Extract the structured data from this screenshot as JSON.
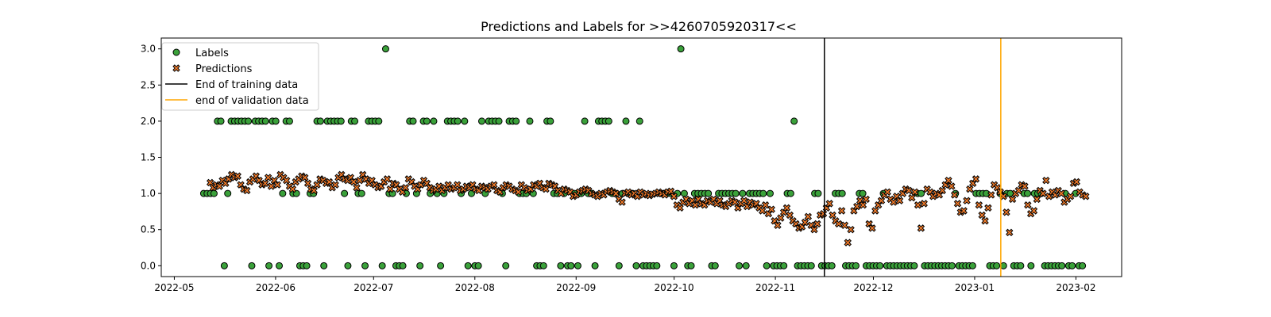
{
  "chart_data": {
    "type": "scatter",
    "title": "Predictions and Labels for >>4260705920317<<",
    "xlabel": "",
    "ylabel": "",
    "x_ticks": [
      "2022-05",
      "2022-06",
      "2022-07",
      "2022-08",
      "2022-09",
      "2022-10",
      "2022-11",
      "2022-12",
      "2023-01",
      "2023-02"
    ],
    "y_ticks": [
      "0.0",
      "0.5",
      "1.0",
      "1.5",
      "2.0",
      "2.5",
      "3.0"
    ],
    "xlim": [
      "2022-04-27",
      "2023-02-15"
    ],
    "ylim": [
      -0.15,
      3.15
    ],
    "legend_position": "upper-left",
    "colors": {
      "labels_fill": "#3aa13a",
      "predictions_fill": "#f07a2a",
      "edge": "#000000",
      "training_line": "#000000",
      "validation_line": "#ffa500"
    },
    "legend": [
      {
        "label": "Labels",
        "kind": "circle"
      },
      {
        "label": "Predictions",
        "kind": "x"
      },
      {
        "label": "End of training data",
        "kind": "line-black"
      },
      {
        "label": "end of validation data",
        "kind": "line-orange"
      }
    ],
    "vlines": [
      {
        "name": "End of training data",
        "date": "2022-11-16"
      },
      {
        "name": "end of validation data",
        "date": "2023-01-09"
      }
    ],
    "series": [
      {
        "name": "Labels",
        "marker": "circle",
        "start_date": "2022-05-10",
        "values": [
          1,
          1,
          1,
          1,
          2,
          2,
          0,
          1,
          2,
          2,
          2,
          2,
          2,
          2,
          0,
          2,
          2,
          2,
          2,
          0,
          2,
          2,
          0,
          1,
          2,
          2,
          1,
          1,
          0,
          0,
          0,
          1,
          1,
          2,
          2,
          0,
          2,
          2,
          2,
          2,
          2,
          1,
          0,
          2,
          2,
          1,
          1,
          0,
          2,
          2,
          2,
          2,
          0,
          3,
          1,
          1,
          0,
          0,
          0,
          1,
          2,
          2,
          1,
          0,
          2,
          2,
          1,
          2,
          1,
          0,
          1,
          2,
          2,
          2,
          2,
          1,
          2,
          0,
          1,
          0,
          0,
          2,
          1,
          2,
          2,
          2,
          2,
          1,
          0,
          2,
          2,
          2,
          1,
          1,
          1,
          2,
          1,
          0,
          0,
          0,
          2,
          2,
          1,
          1,
          0,
          1,
          0,
          0,
          1,
          0,
          1,
          2,
          1,
          1,
          0,
          2,
          2,
          2,
          2,
          1,
          1,
          0,
          1,
          2,
          1,
          1,
          0,
          2,
          0,
          0,
          0,
          0,
          0,
          1,
          1,
          1,
          1,
          0,
          1,
          3,
          1,
          0,
          0,
          1,
          1,
          1,
          1,
          1,
          0,
          0,
          1,
          1,
          1,
          1,
          1,
          1,
          0,
          1,
          0,
          1,
          1,
          1,
          1,
          1,
          0,
          1,
          0,
          0,
          0,
          0,
          1,
          1,
          2,
          0,
          0,
          0,
          0,
          0,
          1,
          1,
          0,
          0,
          0,
          0,
          1,
          1,
          1,
          0,
          0,
          0,
          0,
          1,
          1,
          0,
          0,
          0,
          0,
          0,
          1,
          0,
          0,
          0,
          0,
          0,
          0,
          0,
          0,
          0,
          1,
          1,
          0,
          0,
          0,
          0,
          0,
          0,
          0,
          0,
          0,
          1,
          0,
          0,
          0,
          0,
          0,
          1,
          1,
          1,
          1,
          0,
          0,
          0,
          1,
          0,
          1,
          1,
          0,
          0,
          0,
          1,
          1,
          0,
          1,
          1,
          1,
          0,
          0,
          0,
          0,
          0,
          0,
          1,
          0,
          0,
          1,
          0,
          0
        ],
        "dates": []
      },
      {
        "name": "Predictions",
        "marker": "x",
        "start_date": "2022-05-12",
        "values": [
          1.15,
          1.08,
          1.12,
          1.1,
          1.18,
          1.14,
          1.2,
          1.26,
          1.22,
          1.24,
          1.12,
          1.06,
          1.04,
          1.16,
          1.2,
          1.24,
          1.18,
          1.12,
          1.14,
          1.22,
          1.1,
          1.18,
          1.12,
          1.26,
          1.22,
          1.18,
          1.1,
          1.06,
          1.16,
          1.2,
          1.24,
          1.22,
          1.14,
          1.06,
          1.04,
          1.12,
          1.2,
          1.18,
          1.14,
          1.16,
          1.08,
          1.12,
          1.22,
          1.26,
          1.2,
          1.18,
          1.22,
          1.16,
          1.08,
          1.18,
          1.26,
          1.2,
          1.14,
          1.18,
          1.12,
          1.08,
          1.1,
          1.16,
          1.2,
          1.06,
          1.14,
          1.12,
          1.06,
          1.02,
          1.08,
          1.2,
          1.16,
          1.1,
          1.06,
          1.12,
          1.18,
          1.14,
          1.08,
          1.04,
          1.06,
          1.1,
          1.04,
          1.08,
          1.12,
          1.06,
          1.08,
          1.12,
          1.04,
          1.06,
          1.1,
          1.08,
          1.12,
          1.06,
          1.04,
          1.1,
          1.08,
          1.06,
          1.1,
          1.12,
          1.04,
          1.02,
          1.08,
          1.12,
          1.1,
          1.06,
          1.04,
          1.02,
          1.12,
          1.08,
          1.04,
          1.06,
          1.12,
          1.1,
          1.14,
          1.08,
          1.06,
          1.14,
          1.12,
          1.1,
          1.04,
          1.0,
          1.06,
          1.04,
          1.02,
          0.96,
          0.98,
          1.02,
          1.04,
          1.06,
          1.04,
          1.0,
          0.98,
          0.96,
          1.0,
          0.98,
          1.02,
          1.04,
          1.02,
          1.0,
          0.92,
          0.88,
          1.0,
          1.02,
          0.98,
          1.0,
          0.96,
          1.02,
          0.98,
          1.0,
          0.97,
          0.99,
          1.0,
          1.02,
          1.0,
          0.98,
          1.02,
          1.03,
          0.96,
          0.84,
          0.8,
          0.88,
          0.92,
          0.86,
          0.9,
          0.84,
          0.92,
          0.86,
          0.84,
          0.9,
          0.88,
          0.92,
          0.86,
          0.9,
          0.84,
          0.82,
          0.86,
          0.9,
          0.88,
          0.8,
          0.86,
          0.9,
          0.82,
          0.88,
          0.84,
          0.86,
          0.8,
          0.76,
          0.84,
          0.72,
          0.78,
          0.62,
          0.56,
          0.66,
          0.74,
          0.8,
          0.7,
          0.62,
          0.58,
          0.52,
          0.54,
          0.6,
          0.68,
          0.56,
          0.5,
          0.58,
          0.7,
          0.72,
          0.8,
          0.86,
          0.7,
          0.62,
          0.58,
          0.76,
          0.56,
          0.32,
          0.5,
          0.76,
          0.82,
          0.9,
          0.84,
          0.92,
          0.58,
          0.52,
          0.76,
          0.84,
          0.9,
          0.98,
          1.02,
          0.92,
          0.88,
          0.96,
          0.9,
          1.0,
          1.06,
          1.04,
          0.94,
          1.02,
          0.84,
          0.52,
          0.86,
          1.06,
          1.02,
          0.96,
          1.0,
          0.98,
          1.04,
          1.12,
          1.18,
          1.1,
          0.98,
          0.86,
          0.74,
          0.76,
          0.9,
          1.06,
          1.14,
          1.2,
          0.84,
          0.7,
          0.62,
          0.8,
          0.98,
          1.12,
          1.08,
          1.02,
          0.96,
          0.74,
          0.46,
          0.92,
          1.0,
          1.04,
          1.12,
          1.1,
          0.84,
          0.72,
          0.76,
          0.92,
          1.04,
          1.0,
          1.18,
          0.96,
          1.02,
          0.98,
          1.04,
          1.0,
          0.88,
          0.92,
          0.96,
          1.14,
          1.16,
          1.02,
          0.98,
          0.96
        ]
      }
    ]
  }
}
